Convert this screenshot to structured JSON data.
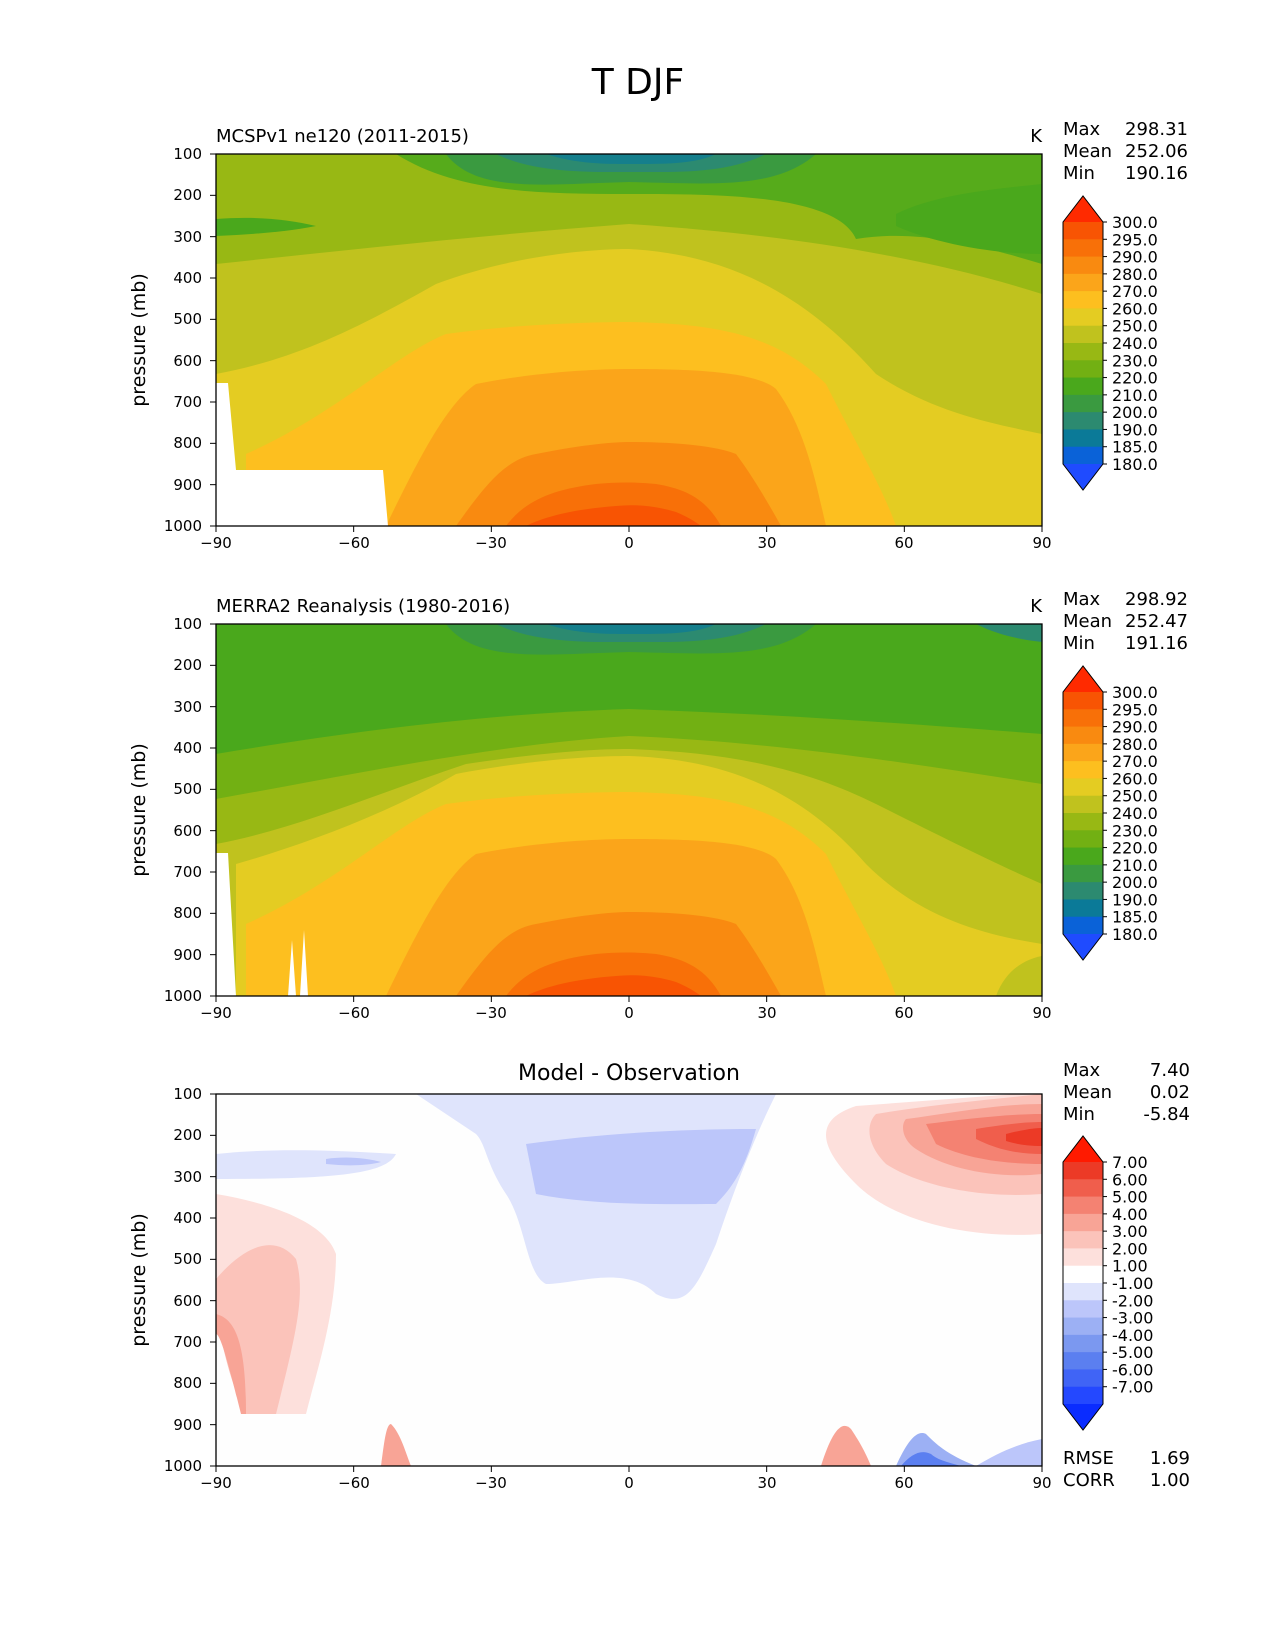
{
  "figure": {
    "title": "T DJF",
    "xtick_labels": [
      "−90",
      "−60",
      "−30",
      "0",
      "30",
      "60",
      "90"
    ],
    "ytick_labels": [
      "100",
      "200",
      "300",
      "400",
      "500",
      "600",
      "700",
      "800",
      "900",
      "1000"
    ],
    "ylabel": "pressure (mb)",
    "units": "K",
    "stat_labels": {
      "max": "Max",
      "mean": "Mean",
      "min": "Min",
      "rmse": "RMSE",
      "corr": "CORR"
    }
  },
  "panels": [
    {
      "title_left": "MCSPv1 ne120 (2011-2015)",
      "title_center": "",
      "units": "K",
      "stats": {
        "max": "298.31",
        "mean": "252.06",
        "min": "190.16"
      },
      "colorbar_labels": [
        "300.0",
        "295.0",
        "290.0",
        "280.0",
        "270.0",
        "260.0",
        "250.0",
        "240.0",
        "230.0",
        "220.0",
        "210.0",
        "200.0",
        "190.0",
        "185.0",
        "180.0"
      ]
    },
    {
      "title_left": "MERRA2 Reanalysis (1980-2016)",
      "title_center": "",
      "units": "K",
      "stats": {
        "max": "298.92",
        "mean": "252.47",
        "min": "191.16"
      },
      "colorbar_labels": [
        "300.0",
        "295.0",
        "290.0",
        "280.0",
        "270.0",
        "260.0",
        "250.0",
        "240.0",
        "230.0",
        "220.0",
        "210.0",
        "200.0",
        "190.0",
        "185.0",
        "180.0"
      ]
    },
    {
      "title_left": "",
      "title_center": "Model - Observation",
      "units": "",
      "stats": {
        "max": "7.40",
        "mean": "0.02",
        "min": "-5.84",
        "rmse": "1.69",
        "corr": "1.00"
      },
      "colorbar_labels": [
        "7.00",
        "6.00",
        "5.00",
        "4.00",
        "3.00",
        "2.00",
        "1.00",
        "-1.00",
        "-2.00",
        "-3.00",
        "-4.00",
        "-5.00",
        "-6.00",
        "-7.00"
      ]
    }
  ],
  "chart_data": [
    {
      "type": "heatmap",
      "title": "MCSPv1 ne120 (2011-2015)",
      "ylabel": "pressure (mb)",
      "xlim": [
        -90,
        90
      ],
      "ylim": [
        1000,
        100
      ],
      "units": "K",
      "levels": [
        180,
        185,
        190,
        200,
        210,
        220,
        230,
        240,
        250,
        260,
        270,
        280,
        290,
        295,
        300
      ],
      "colors": [
        "#1f4bff",
        "#0a62d8",
        "#0b7a98",
        "#2c8a70",
        "#3a9a40",
        "#4aa81c",
        "#72b013",
        "#98b814",
        "#c0c21e",
        "#e4cc22",
        "#fdbf1f",
        "#fba51a",
        "#f98a10",
        "#f87008",
        "#f85403",
        "#ff2a00"
      ],
      "statistics": {
        "max": 298.31,
        "mean": 252.06,
        "min": 190.16
      },
      "approx_values": {
        "top_100mb_equator": 195,
        "equator_1000mb": 298,
        "midlat_30_500mb": 255,
        "north_pole_200mb": 218,
        "south_pole_200mb": 222
      },
      "masked_region": "surface below terrain over Antarctica (~90S-53S, 870-1000mb)"
    },
    {
      "type": "heatmap",
      "title": "MERRA2 Reanalysis (1980-2016)",
      "ylabel": "pressure (mb)",
      "xlim": [
        -90,
        90
      ],
      "ylim": [
        1000,
        100
      ],
      "units": "K",
      "levels": [
        180,
        185,
        190,
        200,
        210,
        220,
        230,
        240,
        250,
        260,
        270,
        280,
        290,
        295,
        300
      ],
      "colors": [
        "#1f4bff",
        "#0a62d8",
        "#0b7a98",
        "#2c8a70",
        "#3a9a40",
        "#4aa81c",
        "#72b013",
        "#98b814",
        "#c0c21e",
        "#e4cc22",
        "#fdbf1f",
        "#fba51a",
        "#f98a10",
        "#f87008",
        "#f85403",
        "#ff2a00"
      ],
      "statistics": {
        "max": 298.92,
        "mean": 252.47,
        "min": 191.16
      },
      "approx_values": {
        "top_100mb_equator": 196,
        "equator_1000mb": 299,
        "midlat_30_500mb": 256,
        "north_pole_200mb": 215,
        "south_pole_200mb": 215
      }
    },
    {
      "type": "heatmap",
      "title": "Model - Observation",
      "ylabel": "pressure (mb)",
      "xlim": [
        -90,
        90
      ],
      "ylim": [
        1000,
        100
      ],
      "units": "K",
      "levels": [
        -7,
        -6,
        -5,
        -4,
        -3,
        -2,
        -1,
        1,
        2,
        3,
        4,
        5,
        6,
        7
      ],
      "colors": [
        "#0a2cff",
        "#2448ff",
        "#4064f6",
        "#5b7ff0",
        "#7b98f0",
        "#9cb0f4",
        "#bcc6fa",
        "#dfe4fc",
        "#ffffff",
        "#fde0dc",
        "#fbc3ba",
        "#f8a496",
        "#f48272",
        "#f05e4c",
        "#ec3a26",
        "#ff1a00"
      ],
      "statistics": {
        "max": 7.4,
        "mean": 0.02,
        "min": -5.84,
        "rmse": 1.69,
        "corr": 1.0
      },
      "features": [
        {
          "region": "north high latitudes 150-350mb",
          "value": "+2 to +7"
        },
        {
          "region": "tropical upper troposphere 100-600mb",
          "value": "-1 to -2"
        },
        {
          "region": "southern polar 400-870mb",
          "value": "+1 to +3"
        },
        {
          "region": "northern surface 60-90N near 1000mb",
          "value": "-1 to -5"
        }
      ]
    }
  ]
}
